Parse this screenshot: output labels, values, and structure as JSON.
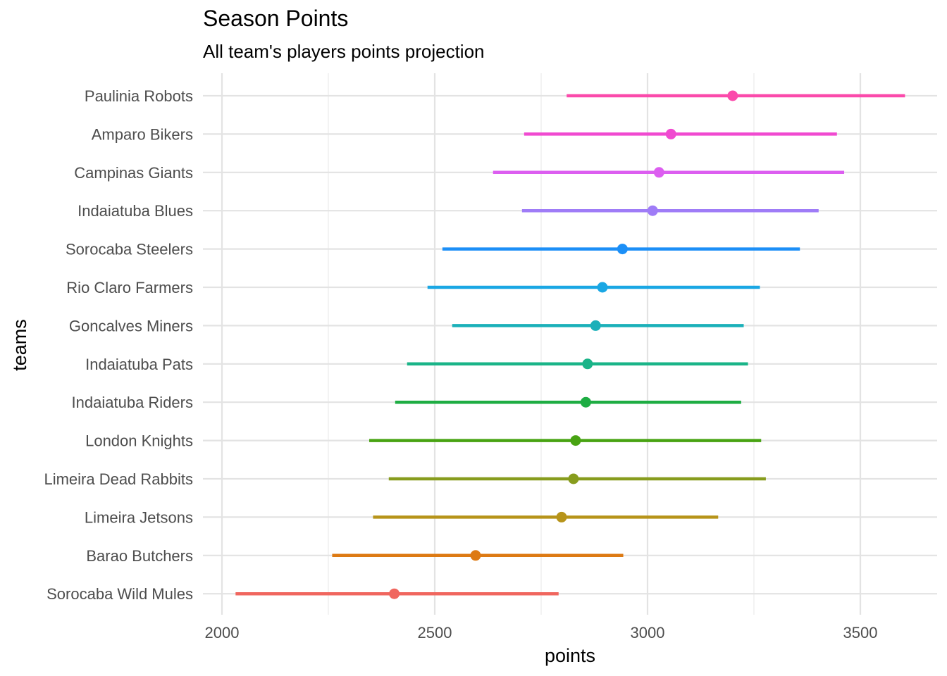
{
  "chart_data": {
    "type": "pointrange",
    "title": "Season Points",
    "subtitle": "All team's players points projection",
    "xlabel": "points",
    "ylabel": "teams",
    "xlim": [
      1970,
      3660
    ],
    "x_ticks": [
      2000,
      2500,
      3000,
      3500
    ],
    "x_minor_ticks": [
      2250,
      2750,
      3250
    ],
    "grid": true,
    "legend": "none",
    "teams": [
      {
        "name": "Paulinia Robots",
        "low": 2810,
        "point": 3200,
        "high": 3605,
        "color": "#fb4aab"
      },
      {
        "name": "Amparo Bikers",
        "low": 2710,
        "point": 3055,
        "high": 3445,
        "color": "#f04ad0"
      },
      {
        "name": "Campinas Giants",
        "low": 2637,
        "point": 3027,
        "high": 3462,
        "color": "#dc5ef0"
      },
      {
        "name": "Indaiatuba Blues",
        "low": 2705,
        "point": 3012,
        "high": 3402,
        "color": "#9f7cf7"
      },
      {
        "name": "Sorocaba Steelers",
        "low": 2518,
        "point": 2941,
        "high": 3358,
        "color": "#1c8ff7"
      },
      {
        "name": "Rio Claro Farmers",
        "low": 2483,
        "point": 2894,
        "high": 3264,
        "color": "#1aa7e4"
      },
      {
        "name": "Goncalves Miners",
        "low": 2541,
        "point": 2878,
        "high": 3226,
        "color": "#1bb0b9"
      },
      {
        "name": "Indaiatuba Pats",
        "low": 2435,
        "point": 2859,
        "high": 3236,
        "color": "#1ab488"
      },
      {
        "name": "Indaiatuba Riders",
        "low": 2407,
        "point": 2855,
        "high": 3220,
        "color": "#1ead43"
      },
      {
        "name": "London Knights",
        "low": 2346,
        "point": 2831,
        "high": 3267,
        "color": "#48a312"
      },
      {
        "name": "Limeira Dead Rabbits",
        "low": 2392,
        "point": 2826,
        "high": 3278,
        "color": "#879c1d"
      },
      {
        "name": "Limeira Jetsons",
        "low": 2355,
        "point": 2798,
        "high": 3166,
        "color": "#b7941a"
      },
      {
        "name": "Barao Butchers",
        "low": 2259,
        "point": 2596,
        "high": 2943,
        "color": "#dd7a13"
      },
      {
        "name": "Sorocaba Wild Mules",
        "low": 2032,
        "point": 2405,
        "high": 2791,
        "color": "#f0665e"
      }
    ]
  }
}
